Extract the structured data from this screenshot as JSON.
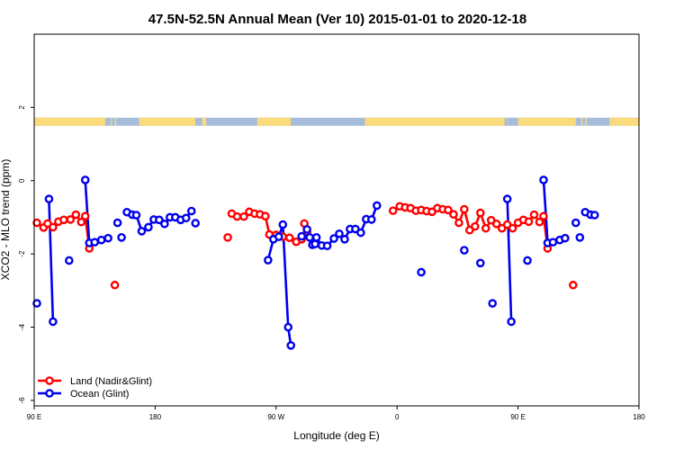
{
  "chart_data": {
    "type": "line",
    "title": "47.5N-52.5N Annual Mean (Ver 10)   2015-01-01 to 2020-12-18",
    "xlabel": "Longitude (deg E)",
    "ylabel": "XCO2 - MLO trend (ppm)",
    "xlim": [
      90,
      540
    ],
    "ylim": [
      -6.15,
      4.0
    ],
    "x_ticks": [
      {
        "value": 90,
        "label": "90 E"
      },
      {
        "value": 180,
        "label": "180"
      },
      {
        "value": 270,
        "label": "90 W"
      },
      {
        "value": 360,
        "label": "0"
      },
      {
        "value": 450,
        "label": "90 E"
      },
      {
        "value": 540,
        "label": "180"
      }
    ],
    "y_ticks": [
      {
        "value": 2,
        "label": "2"
      },
      {
        "value": 0,
        "label": "0"
      },
      {
        "value": -2,
        "label": "-2"
      },
      {
        "value": -4,
        "label": "-4"
      },
      {
        "value": -6,
        "label": "-6"
      }
    ],
    "land_mask": {
      "y_range": [
        1.5,
        1.72
      ],
      "land_color": "#f9da7d",
      "ocean_color": "#a5bcdb",
      "land_spans": [
        [
          90,
          143
        ],
        [
          147,
          147.8
        ],
        [
          150,
          151
        ],
        [
          168,
          210
        ],
        [
          215,
          218
        ],
        [
          256,
          281
        ],
        [
          336,
          440
        ],
        [
          442,
          442.2
        ],
        [
          450,
          493
        ],
        [
          497,
          498
        ],
        [
          500,
          501
        ],
        [
          518,
          540
        ]
      ]
    },
    "series": [
      {
        "name": "Land (Nadir&Glint)",
        "color": "#ff0000",
        "segments": [
          [
            [
              92,
              -1.15
            ],
            [
              97,
              -1.28
            ],
            [
              100,
              -1.17
            ],
            [
              104,
              -1.27
            ],
            [
              108,
              -1.12
            ],
            [
              112,
              -1.07
            ],
            [
              117,
              -1.06
            ],
            [
              121,
              -0.93
            ],
            [
              125,
              -1.13
            ],
            [
              128,
              -0.97
            ],
            [
              131,
              -1.85
            ]
          ],
          [
            [
              237,
              -0.9
            ],
            [
              241,
              -0.98
            ],
            [
              246,
              -0.98
            ],
            [
              250,
              -0.85
            ],
            [
              254,
              -0.9
            ],
            [
              258,
              -0.92
            ],
            [
              262,
              -0.97
            ],
            [
              265,
              -1.47
            ],
            [
              270,
              -1.48
            ],
            [
              275,
              -1.53
            ],
            [
              280,
              -1.56
            ],
            [
              285,
              -1.67
            ],
            [
              289,
              -1.6
            ],
            [
              293,
              -1.4
            ]
          ],
          [
            [
              357,
              -0.82
            ],
            [
              362,
              -0.7
            ],
            [
              366,
              -0.73
            ],
            [
              370,
              -0.75
            ],
            [
              374,
              -0.82
            ],
            [
              378,
              -0.8
            ],
            [
              382,
              -0.83
            ],
            [
              386,
              -0.85
            ],
            [
              390,
              -0.75
            ],
            [
              394,
              -0.78
            ],
            [
              398,
              -0.8
            ],
            [
              402,
              -0.92
            ],
            [
              406,
              -1.15
            ],
            [
              410,
              -0.78
            ],
            [
              414,
              -1.35
            ],
            [
              418,
              -1.25
            ],
            [
              422,
              -0.88
            ],
            [
              426,
              -1.3
            ],
            [
              430,
              -1.08
            ],
            [
              434,
              -1.18
            ],
            [
              438,
              -1.3
            ],
            [
              442,
              -1.2
            ],
            [
              446,
              -1.3
            ],
            [
              450,
              -1.15
            ],
            [
              454,
              -1.07
            ],
            [
              458,
              -1.12
            ],
            [
              462,
              -0.93
            ],
            [
              466,
              -1.13
            ],
            [
              469,
              -0.97
            ],
            [
              472,
              -1.85
            ]
          ]
        ],
        "isolated": [
          [
            150,
            -2.85
          ],
          [
            234,
            -1.55
          ],
          [
            291,
            -1.17
          ],
          [
            491,
            -2.85
          ]
        ]
      },
      {
        "name": "Ocean (Glint)",
        "color": "#0000ee",
        "segments": [
          [
            [
              101,
              -0.5
            ],
            [
              104,
              -3.85
            ]
          ],
          [
            [
              128,
              0.02
            ],
            [
              131,
              -1.7
            ],
            [
              135,
              -1.68
            ],
            [
              140,
              -1.62
            ],
            [
              145,
              -1.57
            ]
          ],
          [
            [
              159,
              -0.86
            ],
            [
              163,
              -0.93
            ],
            [
              166,
              -0.94
            ],
            [
              170,
              -1.38
            ],
            [
              175,
              -1.27
            ],
            [
              179,
              -1.06
            ],
            [
              183,
              -1.07
            ],
            [
              187,
              -1.18
            ],
            [
              191,
              -1.0
            ],
            [
              195,
              -1.0
            ],
            [
              199,
              -1.07
            ],
            [
              203,
              -1.02
            ],
            [
              207,
              -0.83
            ]
          ],
          [
            [
              264,
              -2.17
            ],
            [
              268,
              -1.6
            ],
            [
              272,
              -1.53
            ],
            [
              275,
              -1.2
            ],
            [
              279,
              -4.0
            ],
            [
              281,
              -4.5
            ]
          ],
          [
            [
              289,
              -1.52
            ],
            [
              293,
              -1.33
            ],
            [
              297,
              -1.75
            ],
            [
              300,
              -1.55
            ],
            [
              304,
              -1.77
            ],
            [
              308,
              -1.78
            ],
            [
              313,
              -1.58
            ],
            [
              317,
              -1.45
            ],
            [
              321,
              -1.6
            ],
            [
              325,
              -1.32
            ],
            [
              329,
              -1.32
            ],
            [
              333,
              -1.42
            ],
            [
              337,
              -1.05
            ],
            [
              341,
              -1.06
            ],
            [
              345,
              -0.68
            ]
          ],
          [
            [
              442,
              -0.5
            ],
            [
              445,
              -3.85
            ]
          ],
          [
            [
              469,
              0.02
            ],
            [
              472,
              -1.7
            ],
            [
              476,
              -1.68
            ],
            [
              481,
              -1.62
            ],
            [
              485,
              -1.57
            ]
          ],
          [
            [
              500,
              -0.86
            ],
            [
              504,
              -0.93
            ],
            [
              507,
              -0.94
            ]
          ]
        ],
        "isolated": [
          [
            92,
            -3.35
          ],
          [
            116,
            -2.18
          ],
          [
            152,
            -1.15
          ],
          [
            155,
            -1.55
          ],
          [
            210,
            -1.16
          ],
          [
            295,
            -1.55
          ],
          [
            299,
            -1.73
          ],
          [
            378,
            -2.5
          ],
          [
            410,
            -1.9
          ],
          [
            422,
            -2.25
          ],
          [
            431,
            -3.35
          ],
          [
            457,
            -2.18
          ],
          [
            493,
            -1.15
          ],
          [
            496,
            -1.55
          ]
        ]
      }
    ],
    "legend": {
      "position": "bottom-left",
      "entries": [
        "Land (Nadir&Glint)",
        "Ocean (Glint)"
      ]
    }
  }
}
